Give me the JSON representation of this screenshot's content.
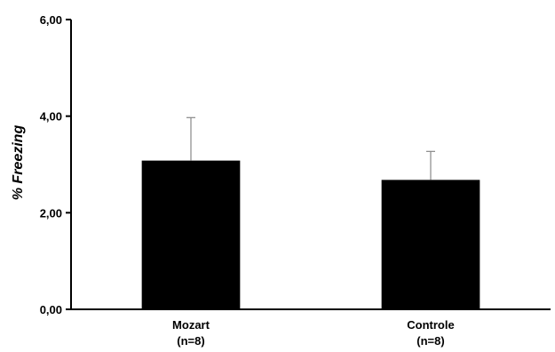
{
  "chart_data": {
    "type": "bar",
    "categories": [
      "Mozart",
      "Controle"
    ],
    "category_sublabels": [
      "(n=8)",
      "(n=8)"
    ],
    "values": [
      3.08,
      2.68
    ],
    "error_up": [
      0.89,
      0.59
    ],
    "ylabel": "% Freezing",
    "ylim": [
      0,
      6
    ],
    "yticks": [
      0,
      2,
      4,
      6
    ],
    "ytick_labels": [
      "0,00",
      "2,00",
      "4,00",
      "6,00"
    ],
    "grid": false,
    "colors": {
      "bar": "#000000",
      "error_bar": "#888888",
      "axis": "#000000"
    }
  }
}
